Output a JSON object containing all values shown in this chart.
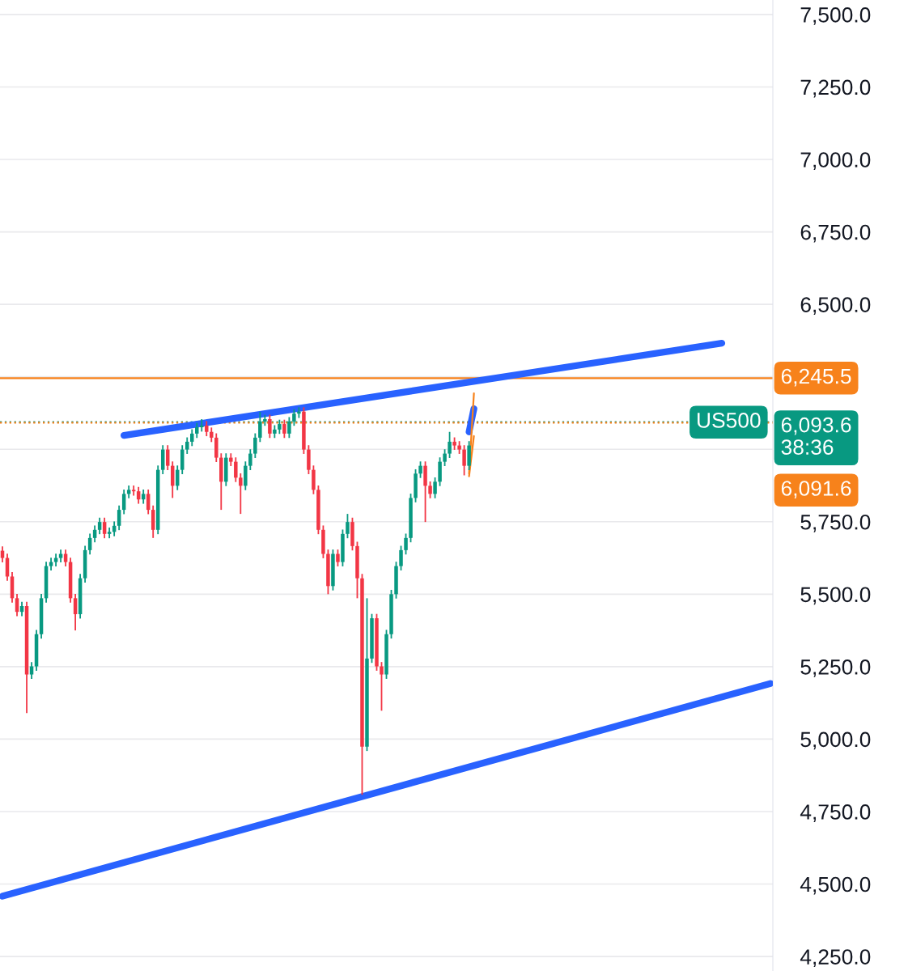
{
  "chart_data": {
    "type": "candlestick",
    "categories": [
      null,
      null,
      null,
      null,
      null,
      null,
      null,
      null,
      null,
      null,
      null,
      null,
      null,
      null,
      null,
      null,
      null,
      null,
      null,
      null,
      null,
      null,
      null,
      null,
      null,
      null,
      null,
      null,
      null,
      null,
      null,
      null,
      null,
      null,
      null,
      null,
      null,
      null,
      null,
      null,
      null,
      null,
      null,
      null,
      null,
      null,
      null,
      null,
      null,
      null,
      null,
      null,
      null,
      null,
      null,
      null,
      null,
      null,
      null,
      null,
      null,
      null,
      null,
      null,
      null,
      null,
      null,
      null,
      null,
      null,
      null,
      null,
      null,
      null,
      null,
      null,
      null,
      null,
      null,
      null,
      null,
      null,
      null,
      null,
      null,
      null,
      null,
      null,
      null,
      null,
      null,
      null,
      null,
      null,
      null,
      null,
      null,
      null,
      null,
      null,
      null,
      null,
      null,
      null,
      null,
      null,
      null,
      null,
      null,
      null,
      null,
      null,
      null,
      null,
      null,
      null,
      null,
      null,
      null,
      null,
      null,
      null,
      null,
      null,
      null,
      null,
      null,
      null,
      null,
      null,
      null,
      null,
      null,
      null,
      null,
      null,
      null,
      null,
      null,
      null,
      null,
      null,
      null,
      null,
      null,
      null,
      null,
      null,
      null,
      null,
      null,
      null,
      null,
      null,
      null,
      null,
      null,
      null,
      null
    ],
    "ohlc": [
      [
        5650,
        5665,
        5610,
        5625
      ],
      [
        5625,
        5640,
        5546,
        5561
      ],
      [
        5561,
        5576,
        5471,
        5486
      ],
      [
        5486,
        5501,
        5424,
        5439
      ],
      [
        5439,
        5474,
        5424,
        5459
      ],
      [
        5459,
        5474,
        5090,
        5223
      ],
      [
        5223,
        5266,
        5208,
        5251
      ],
      [
        5251,
        5377,
        5236,
        5362
      ],
      [
        5362,
        5501,
        5347,
        5486
      ],
      [
        5486,
        5612,
        5471,
        5597
      ],
      [
        5597,
        5626,
        5582,
        5611
      ],
      [
        5611,
        5640,
        5596,
        5625
      ],
      [
        5625,
        5654,
        5610,
        5639
      ],
      [
        5639,
        5654,
        5596,
        5611
      ],
      [
        5611,
        5626,
        5471,
        5486
      ],
      [
        5486,
        5501,
        5375,
        5431
      ],
      [
        5431,
        5570,
        5416,
        5555
      ],
      [
        5555,
        5667,
        5540,
        5652
      ],
      [
        5652,
        5709,
        5637,
        5694
      ],
      [
        5694,
        5737,
        5679,
        5722
      ],
      [
        5722,
        5764,
        5707,
        5749
      ],
      [
        5749,
        5764,
        5693,
        5708
      ],
      [
        5708,
        5730,
        5693,
        5715
      ],
      [
        5715,
        5751,
        5700,
        5736
      ],
      [
        5736,
        5806,
        5721,
        5791
      ],
      [
        5791,
        5861,
        5776,
        5846
      ],
      [
        5846,
        5875,
        5831,
        5860
      ],
      [
        5860,
        5875,
        5840,
        5855
      ],
      [
        5855,
        5870,
        5812,
        5827
      ],
      [
        5827,
        5861,
        5812,
        5846
      ],
      [
        5846,
        5861,
        5776,
        5791
      ],
      [
        5791,
        5806,
        5694,
        5722
      ],
      [
        5722,
        5944,
        5707,
        5929
      ],
      [
        5929,
        6014,
        5914,
        5999
      ],
      [
        5999,
        6014,
        5928,
        5943
      ],
      [
        5943,
        5958,
        5832,
        5874
      ],
      [
        5874,
        5944,
        5859,
        5929
      ],
      [
        5929,
        6014,
        5914,
        5999
      ],
      [
        5999,
        6041,
        5984,
        6026
      ],
      [
        6026,
        6069,
        6011,
        6054
      ],
      [
        6054,
        6091,
        6039,
        6076
      ],
      [
        6076,
        6104,
        6061,
        6082
      ],
      [
        6082,
        6097,
        6045,
        6060
      ],
      [
        6060,
        6075,
        6025,
        6040
      ],
      [
        6040,
        6055,
        5956,
        5971
      ],
      [
        5971,
        5986,
        5791,
        5888
      ],
      [
        5888,
        5986,
        5873,
        5971
      ],
      [
        5971,
        5986,
        5942,
        5957
      ],
      [
        5957,
        5972,
        5887,
        5902
      ],
      [
        5902,
        5917,
        5777,
        5874
      ],
      [
        5874,
        5958,
        5859,
        5943
      ],
      [
        5943,
        6000,
        5928,
        5985
      ],
      [
        5985,
        6055,
        5970,
        6040
      ],
      [
        6040,
        6129,
        6025,
        6096
      ],
      [
        6096,
        6119,
        6081,
        6104
      ],
      [
        6104,
        6119,
        6039,
        6054
      ],
      [
        6054,
        6083,
        6039,
        6068
      ],
      [
        6068,
        6102,
        6053,
        6087
      ],
      [
        6087,
        6102,
        6039,
        6054
      ],
      [
        6054,
        6111,
        6039,
        6096
      ],
      [
        6096,
        6138,
        6081,
        6123
      ],
      [
        6123,
        6145,
        6108,
        6130
      ],
      [
        6130,
        6145,
        5984,
        5999
      ],
      [
        5999,
        6014,
        5914,
        5929
      ],
      [
        5929,
        5944,
        5845,
        5860
      ],
      [
        5860,
        5875,
        5707,
        5722
      ],
      [
        5722,
        5737,
        5624,
        5639
      ],
      [
        5639,
        5654,
        5500,
        5528
      ],
      [
        5528,
        5654,
        5513,
        5639
      ],
      [
        5639,
        5654,
        5596,
        5611
      ],
      [
        5611,
        5723,
        5596,
        5708
      ],
      [
        5708,
        5777,
        5693,
        5749
      ],
      [
        5749,
        5764,
        5651,
        5666
      ],
      [
        5666,
        5681,
        5486,
        5555
      ],
      [
        5555,
        5570,
        4808,
        4974
      ],
      [
        4974,
        5486,
        4959,
        5278
      ],
      [
        5278,
        5432,
        5263,
        5417
      ],
      [
        5417,
        5432,
        5236,
        5251
      ],
      [
        5251,
        5266,
        5098,
        5223
      ],
      [
        5223,
        5377,
        5208,
        5362
      ],
      [
        5362,
        5515,
        5347,
        5500
      ],
      [
        5500,
        5612,
        5485,
        5597
      ],
      [
        5597,
        5667,
        5582,
        5652
      ],
      [
        5652,
        5709,
        5637,
        5694
      ],
      [
        5694,
        5847,
        5679,
        5832
      ],
      [
        5832,
        5931,
        5817,
        5916
      ],
      [
        5916,
        5958,
        5901,
        5943
      ],
      [
        5943,
        5958,
        5749,
        5874
      ],
      [
        5874,
        5889,
        5831,
        5846
      ],
      [
        5846,
        5903,
        5831,
        5888
      ],
      [
        5888,
        5972,
        5873,
        5957
      ],
      [
        5957,
        6000,
        5942,
        5985
      ],
      [
        5985,
        6060,
        5970,
        6026
      ],
      [
        6026,
        6041,
        5998,
        6013
      ],
      [
        6013,
        6028,
        5984,
        5999
      ],
      [
        5999,
        6014,
        5910,
        5943
      ],
      [
        5943,
        6028,
        5928,
        6013
      ],
      null,
      null,
      null,
      null,
      null,
      null,
      null,
      null,
      null,
      null,
      null,
      null,
      null,
      null,
      null,
      null,
      null,
      null,
      null,
      null,
      null,
      null,
      null,
      null,
      null,
      null,
      null,
      null,
      null,
      null,
      null,
      null,
      null,
      null,
      null,
      null,
      null,
      null,
      null,
      null,
      null,
      null,
      null,
      null,
      null,
      null,
      null,
      null,
      null,
      null,
      null,
      null,
      null,
      null,
      null,
      null,
      null,
      null,
      null,
      null,
      null,
      null
    ],
    "colors": [
      "#f23645",
      "#f23645",
      "#f23645",
      "#f23645",
      "#089981",
      "#f23645",
      "#089981",
      "#089981",
      "#089981",
      "#089981",
      "#089981",
      "#089981",
      "#089981",
      "#f23645",
      "#f23645",
      "#f23645",
      "#089981",
      "#089981",
      "#089981",
      "#089981",
      "#089981",
      "#f23645",
      "#089981",
      "#089981",
      "#089981",
      "#089981",
      "#089981",
      "#f23645",
      "#f23645",
      "#089981",
      "#f23645",
      "#f23645",
      "#089981",
      "#089981",
      "#f23645",
      "#f23645",
      "#089981",
      "#089981",
      "#089981",
      "#089981",
      "#089981",
      "#089981",
      "#f23645",
      "#f23645",
      "#f23645",
      "#f23645",
      "#089981",
      "#f23645",
      "#f23645",
      "#f23645",
      "#089981",
      "#089981",
      "#089981",
      "#089981",
      "#089981",
      "#f23645",
      "#089981",
      "#089981",
      "#f23645",
      "#089981",
      "#089981",
      "#089981",
      "#f23645",
      "#f23645",
      "#f23645",
      "#f23645",
      "#f23645",
      "#f23645",
      "#089981",
      "#f23645",
      "#089981",
      "#089981",
      "#f23645",
      "#f23645",
      "#f23645",
      "#089981",
      "#089981",
      "#f23645",
      "#f23645",
      "#089981",
      "#089981",
      "#089981",
      "#089981",
      "#089981",
      "#089981",
      "#089981",
      "#089981",
      "#f23645",
      "#f23645",
      "#089981",
      "#089981",
      "#089981",
      "#089981",
      "#f23645",
      "#f23645",
      "#f23645",
      "#089981",
      null,
      null,
      null,
      null,
      null,
      null,
      null,
      null,
      null,
      null,
      null,
      null,
      null,
      null,
      null,
      null,
      null,
      null,
      null,
      null,
      null,
      null,
      null,
      null,
      null,
      null,
      null,
      null,
      null,
      null,
      null,
      null,
      null,
      null,
      null,
      null,
      null,
      null,
      null,
      null,
      null,
      null,
      null,
      null,
      null,
      null,
      null,
      null,
      null,
      null,
      null,
      null,
      null,
      null,
      null,
      null,
      null,
      null,
      null,
      null,
      null,
      null
    ],
    "series": [
      {
        "type": "line",
        "color": "#2962ff",
        "values": [
          null,
          null,
          null,
          null,
          null,
          null,
          null,
          null,
          null,
          null,
          null,
          null,
          null,
          null,
          null,
          null,
          null,
          null,
          null,
          null,
          null,
          null,
          null,
          null,
          null,
          6048,
          null,
          null,
          null,
          null,
          null,
          null,
          null,
          null,
          null,
          null,
          null,
          null,
          null,
          null,
          null,
          null,
          null,
          null,
          null,
          null,
          null,
          null,
          null,
          null,
          null,
          null,
          null,
          null,
          null,
          null,
          null,
          null,
          null,
          null,
          null,
          null,
          null,
          null,
          null,
          null,
          null,
          null,
          null,
          null,
          null,
          null,
          null,
          null,
          null,
          null,
          null,
          null,
          null,
          null,
          null,
          null,
          null,
          null,
          null,
          null,
          null,
          null,
          null,
          null,
          null,
          null,
          null,
          null,
          null,
          null,
          null,
          null,
          null,
          null,
          null,
          null,
          null,
          null,
          null,
          null,
          null,
          null,
          null,
          null,
          null,
          null,
          null,
          null,
          null,
          null,
          null,
          null,
          null,
          null,
          null,
          null,
          null,
          null,
          null,
          null,
          null,
          null,
          null,
          null,
          null,
          null,
          null,
          null,
          null,
          null,
          null,
          null,
          null,
          null,
          null,
          null,
          null,
          null,
          null,
          null,
          null,
          null,
          6366,
          null,
          null,
          null,
          null,
          null,
          null,
          null,
          null,
          null,
          null
        ]
      },
      {
        "type": "line",
        "color": "#2962ff",
        "values": [
          4458,
          null,
          null,
          null,
          null,
          null,
          null,
          null,
          null,
          null,
          null,
          null,
          null,
          null,
          null,
          null,
          null,
          null,
          null,
          null,
          null,
          null,
          null,
          null,
          null,
          null,
          null,
          null,
          null,
          null,
          null,
          null,
          null,
          null,
          null,
          null,
          null,
          null,
          null,
          null,
          null,
          null,
          null,
          null,
          null,
          null,
          null,
          null,
          null,
          null,
          null,
          null,
          null,
          null,
          null,
          null,
          null,
          null,
          null,
          null,
          null,
          null,
          null,
          null,
          null,
          null,
          null,
          null,
          null,
          null,
          null,
          null,
          null,
          null,
          null,
          null,
          null,
          null,
          null,
          null,
          null,
          null,
          null,
          null,
          null,
          null,
          null,
          null,
          null,
          null,
          null,
          null,
          null,
          null,
          null,
          null,
          null,
          null,
          null,
          null,
          null,
          null,
          null,
          null,
          null,
          null,
          null,
          null,
          null,
          null,
          null,
          null,
          null,
          null,
          null,
          null,
          null,
          null,
          null,
          null,
          null,
          null,
          null,
          null,
          null,
          null,
          null,
          null,
          null,
          null,
          null,
          null,
          null,
          null,
          null,
          null,
          null,
          null,
          null,
          null,
          null,
          null,
          null,
          null,
          null,
          null,
          null,
          null,
          null,
          null,
          null,
          null,
          null,
          null,
          null,
          null,
          null,
          null,
          5192
        ]
      },
      {
        "type": "line",
        "color": "#2962ff",
        "values": [
          null,
          null,
          null,
          null,
          null,
          null,
          null,
          null,
          null,
          null,
          null,
          null,
          null,
          null,
          null,
          null,
          null,
          null,
          null,
          null,
          null,
          null,
          null,
          null,
          null,
          null,
          null,
          null,
          null,
          null,
          null,
          null,
          null,
          null,
          null,
          null,
          null,
          null,
          null,
          null,
          null,
          null,
          null,
          null,
          null,
          null,
          null,
          null,
          null,
          null,
          null,
          null,
          null,
          null,
          null,
          null,
          null,
          null,
          null,
          null,
          null,
          null,
          null,
          null,
          null,
          null,
          null,
          null,
          null,
          null,
          null,
          null,
          null,
          null,
          null,
          null,
          null,
          null,
          null,
          null,
          null,
          null,
          null,
          null,
          null,
          null,
          null,
          null,
          null,
          null,
          null,
          null,
          null,
          null,
          null,
          null,
          6060,
          6140,
          null,
          null,
          null,
          null,
          null,
          null,
          null,
          null,
          null,
          null,
          null,
          null,
          null,
          null,
          null,
          null,
          null,
          null,
          null,
          null,
          null,
          null,
          null,
          null,
          null,
          null,
          null,
          null,
          null,
          null,
          null,
          null,
          null,
          null,
          null,
          null,
          null,
          null,
          null,
          null,
          null,
          null,
          null,
          null,
          null,
          null,
          null,
          null,
          null,
          null,
          null,
          null,
          null,
          null,
          null,
          null,
          null,
          null,
          null,
          null,
          null
        ]
      },
      {
        "type": "line",
        "color": "#f7821b",
        "values": [
          null,
          null,
          null,
          null,
          null,
          null,
          null,
          null,
          null,
          null,
          null,
          null,
          null,
          null,
          null,
          null,
          null,
          null,
          null,
          null,
          null,
          null,
          null,
          null,
          null,
          null,
          null,
          null,
          null,
          null,
          null,
          null,
          null,
          null,
          null,
          null,
          null,
          null,
          null,
          null,
          null,
          null,
          null,
          null,
          null,
          null,
          null,
          null,
          null,
          null,
          null,
          null,
          null,
          null,
          null,
          null,
          null,
          null,
          null,
          null,
          null,
          null,
          null,
          null,
          null,
          null,
          null,
          null,
          null,
          null,
          null,
          null,
          null,
          null,
          null,
          null,
          null,
          null,
          null,
          null,
          null,
          null,
          null,
          null,
          null,
          null,
          null,
          null,
          null,
          null,
          null,
          null,
          null,
          null,
          null,
          null,
          5916,
          6193,
          null,
          null,
          null,
          null,
          null,
          null,
          null,
          null,
          null,
          null,
          null,
          null,
          null,
          null,
          null,
          null,
          null,
          null,
          null,
          null,
          null,
          null,
          null,
          null,
          null,
          null,
          null,
          null,
          null,
          null,
          null,
          null,
          null,
          null,
          null,
          null,
          null,
          null,
          null,
          null,
          null,
          null,
          null,
          null,
          null,
          null,
          null,
          null,
          null,
          null,
          null,
          null,
          null,
          null,
          null,
          null,
          null,
          null,
          null,
          null,
          null
        ]
      },
      {
        "type": "line",
        "color": "#f7821b",
        "values": [
          null,
          null,
          null,
          null,
          null,
          null,
          null,
          null,
          null,
          null,
          null,
          null,
          null,
          null,
          null,
          null,
          null,
          null,
          null,
          null,
          null,
          null,
          null,
          null,
          null,
          null,
          null,
          null,
          null,
          null,
          null,
          null,
          null,
          null,
          null,
          null,
          null,
          null,
          null,
          null,
          null,
          null,
          null,
          null,
          null,
          null,
          null,
          null,
          null,
          null,
          null,
          null,
          null,
          null,
          null,
          null,
          null,
          null,
          null,
          null,
          null,
          null,
          null,
          null,
          null,
          null,
          null,
          null,
          null,
          null,
          null,
          null,
          null,
          null,
          null,
          null,
          null,
          null,
          null,
          null,
          null,
          null,
          null,
          null,
          null,
          null,
          null,
          null,
          null,
          null,
          null,
          null,
          null,
          null,
          null,
          null,
          5907,
          6046,
          null,
          null,
          null,
          null,
          null,
          null,
          null,
          null,
          null,
          null,
          null,
          null,
          null,
          null,
          null,
          null,
          null,
          null,
          null,
          null,
          null,
          null,
          null,
          null,
          null,
          null,
          null,
          null,
          null,
          null,
          null,
          null,
          null,
          null,
          null,
          null,
          null,
          null,
          null,
          null,
          null,
          null,
          null,
          null,
          null,
          null,
          null,
          null,
          null,
          null,
          null,
          null,
          null,
          null,
          null,
          null,
          null,
          null,
          null,
          null,
          null
        ]
      }
    ],
    "ref_lines": [
      {
        "axis": "y",
        "value": 6245.5,
        "label": "6,245.5",
        "color": "#f7821b",
        "line_style": "solid"
      },
      {
        "axis": "y",
        "value": 6093.6,
        "label": "6,093.6",
        "color": "#089981",
        "line_style": "dotted"
      },
      {
        "axis": "y",
        "value": 6091.6,
        "label": "6,091.6",
        "color": "#f7821b",
        "line_style": "dotted"
      }
    ],
    "annotations": [
      "US500",
      "38:36"
    ],
    "ylim": [
      4200,
      7550
    ],
    "yticks": [
      {
        "value": 4250,
        "label": "4,250.0"
      },
      {
        "value": 4500,
        "label": "4,500.0"
      },
      {
        "value": 4750,
        "label": "4,750.0"
      },
      {
        "value": 5000,
        "label": "5,000.0"
      },
      {
        "value": 5250,
        "label": "5,250.0"
      },
      {
        "value": 5500,
        "label": "5,500.0"
      },
      {
        "value": 5750,
        "label": "5,750.0"
      },
      {
        "value": 6000,
        "label": null
      },
      {
        "value": 6250,
        "label": null
      },
      {
        "value": 6500,
        "label": "6,500.0"
      },
      {
        "value": 6750,
        "label": "6,750.0"
      },
      {
        "value": 7000,
        "label": "7,000.0"
      },
      {
        "value": 7250,
        "label": "7,250.0"
      },
      {
        "value": 7500,
        "label": "7,500.0"
      }
    ],
    "tick_labels": "y",
    "grid": "y"
  }
}
